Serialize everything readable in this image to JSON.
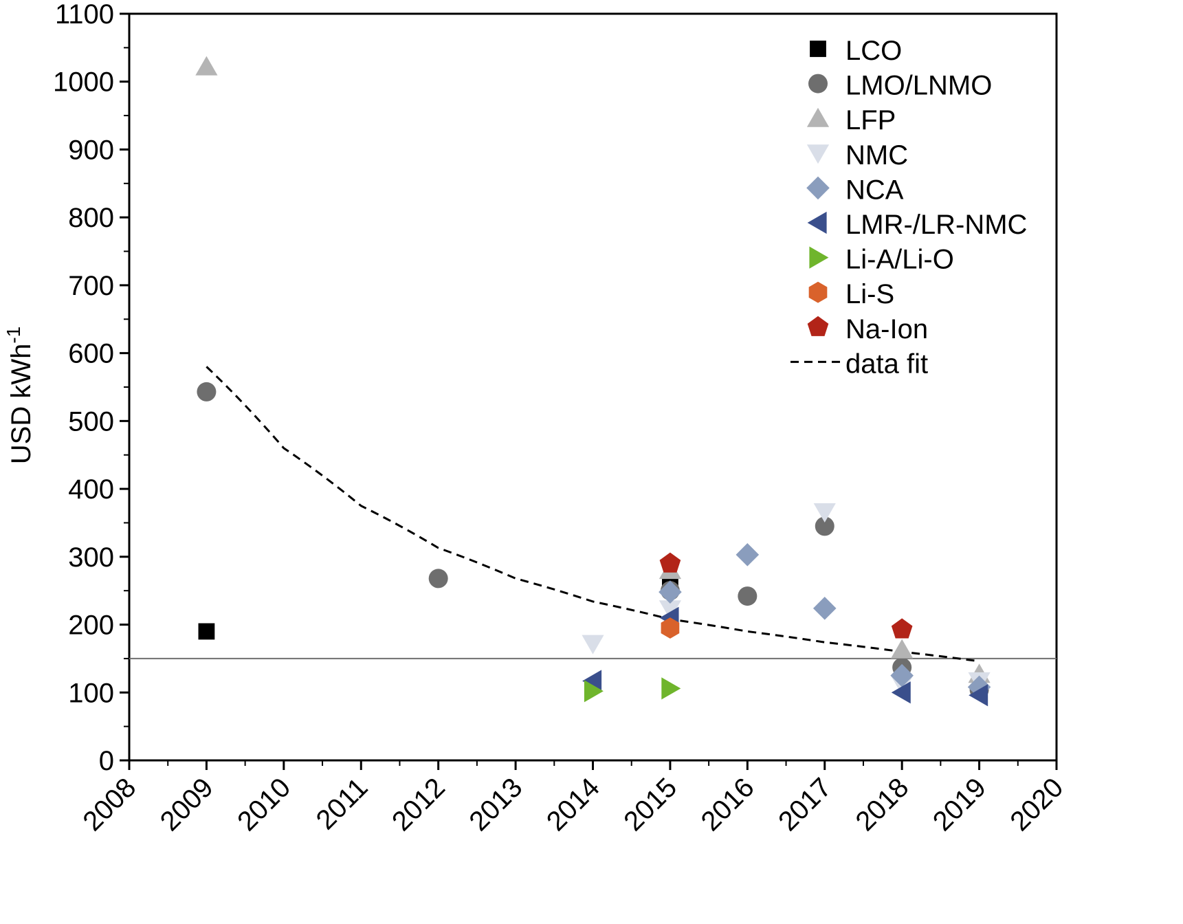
{
  "chart_data": {
    "type": "scatter",
    "title": "",
    "xlabel": "",
    "ylabel": "USD kWh",
    "ylabel_sup": "-1",
    "xlim": [
      2008,
      2020
    ],
    "ylim": [
      0,
      1100
    ],
    "x_ticks": [
      2008,
      2009,
      2010,
      2011,
      2012,
      2013,
      2014,
      2015,
      2016,
      2017,
      2018,
      2019,
      2020
    ],
    "y_ticks": [
      0,
      100,
      200,
      300,
      400,
      500,
      600,
      700,
      800,
      900,
      1000,
      1100
    ],
    "grid": false,
    "legend_position": "top-right",
    "reference_line": {
      "y": 150,
      "color": "#6e6e6e"
    },
    "series": [
      {
        "name": "LCO",
        "marker": "square",
        "color": "#000000",
        "points": [
          {
            "x": 2009,
            "y": 190
          },
          {
            "x": 2015,
            "y": 258
          }
        ]
      },
      {
        "name": "LMO/LNMO",
        "marker": "circle",
        "color": "#6e6e6e",
        "points": [
          {
            "x": 2009,
            "y": 543
          },
          {
            "x": 2012,
            "y": 268
          },
          {
            "x": 2015,
            "y": 250
          },
          {
            "x": 2016,
            "y": 242
          },
          {
            "x": 2017,
            "y": 345
          },
          {
            "x": 2018,
            "y": 137
          },
          {
            "x": 2019,
            "y": 104
          }
        ]
      },
      {
        "name": "LFP",
        "marker": "triangle-up",
        "color": "#b4b4b4",
        "points": [
          {
            "x": 2009,
            "y": 1022
          },
          {
            "x": 2015,
            "y": 280
          },
          {
            "x": 2018,
            "y": 163
          },
          {
            "x": 2019,
            "y": 127
          }
        ]
      },
      {
        "name": "NMC",
        "marker": "triangle-down",
        "color": "#d9dee8",
        "points": [
          {
            "x": 2014,
            "y": 172
          },
          {
            "x": 2015,
            "y": 223
          },
          {
            "x": 2017,
            "y": 366
          },
          {
            "x": 2018,
            "y": 112
          },
          {
            "x": 2019,
            "y": 117
          }
        ]
      },
      {
        "name": "NCA",
        "marker": "diamond",
        "color": "#8a9dbd",
        "points": [
          {
            "x": 2015,
            "y": 248
          },
          {
            "x": 2016,
            "y": 303
          },
          {
            "x": 2017,
            "y": 224
          },
          {
            "x": 2018,
            "y": 125
          },
          {
            "x": 2019,
            "y": 108
          }
        ]
      },
      {
        "name": "LMR-/LR-NMC",
        "marker": "triangle-left",
        "color": "#3a4f8c",
        "points": [
          {
            "x": 2014,
            "y": 117
          },
          {
            "x": 2015,
            "y": 210
          },
          {
            "x": 2018,
            "y": 100
          },
          {
            "x": 2019,
            "y": 96
          }
        ]
      },
      {
        "name": "Li-A/Li-O",
        "marker": "triangle-right",
        "color": "#6fb52c",
        "points": [
          {
            "x": 2014,
            "y": 102
          },
          {
            "x": 2015,
            "y": 106
          }
        ]
      },
      {
        "name": "Li-S",
        "marker": "hexagon",
        "color": "#d9622b",
        "points": [
          {
            "x": 2015,
            "y": 195
          }
        ]
      },
      {
        "name": "Na-Ion",
        "marker": "pentagon",
        "color": "#b22418",
        "points": [
          {
            "x": 2015,
            "y": 290
          },
          {
            "x": 2018,
            "y": 193
          }
        ]
      }
    ],
    "fit": {
      "name": "data fit",
      "style": "dashed",
      "color": "#000000",
      "points": [
        {
          "x": 2009,
          "y": 580
        },
        {
          "x": 2010,
          "y": 460
        },
        {
          "x": 2011,
          "y": 375
        },
        {
          "x": 2012,
          "y": 313
        },
        {
          "x": 2013,
          "y": 268
        },
        {
          "x": 2014,
          "y": 234
        },
        {
          "x": 2015,
          "y": 208
        },
        {
          "x": 2016,
          "y": 190
        },
        {
          "x": 2017,
          "y": 174
        },
        {
          "x": 2018,
          "y": 160
        },
        {
          "x": 2019,
          "y": 146
        }
      ]
    }
  }
}
